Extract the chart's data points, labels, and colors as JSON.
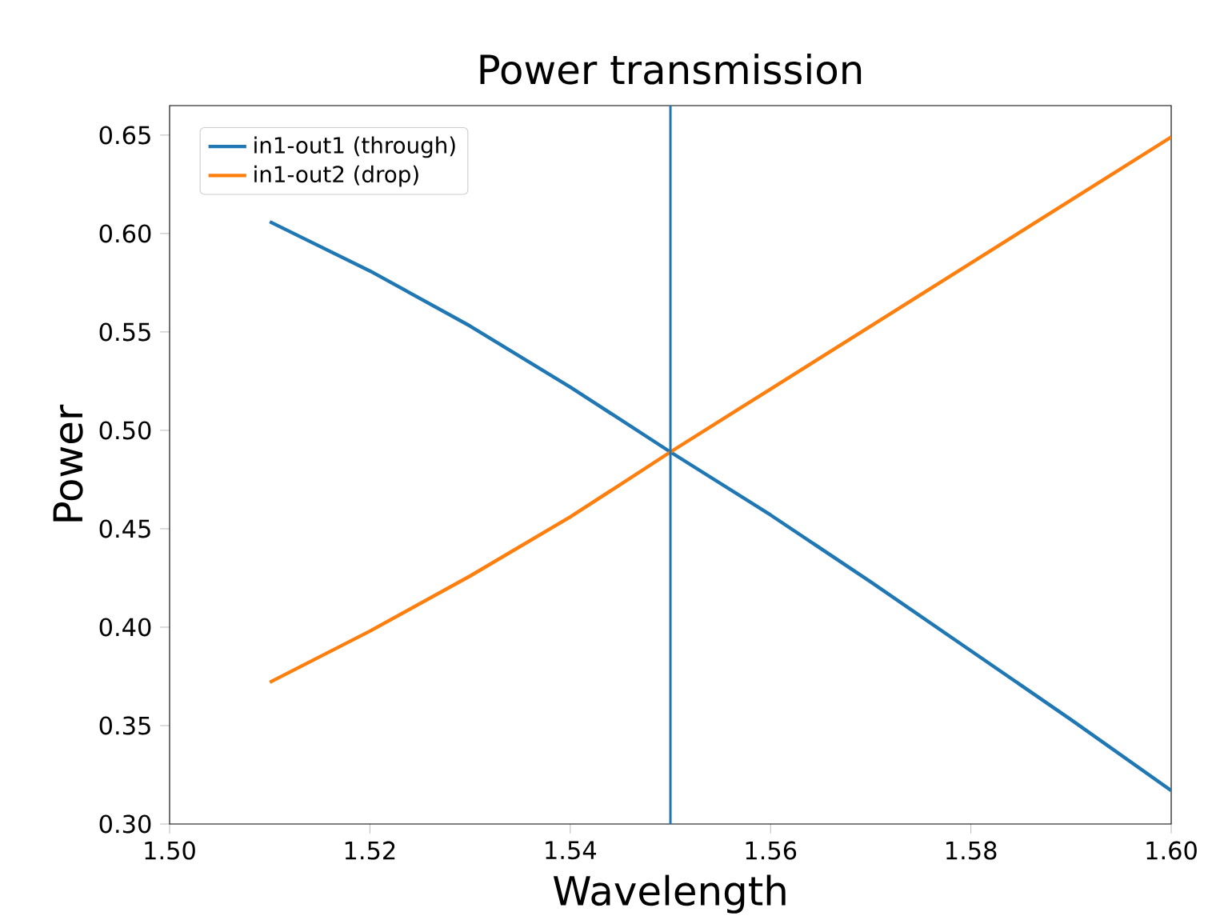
{
  "chart_data": {
    "type": "line",
    "title": "Power transmission",
    "xlabel": "Wavelength",
    "ylabel": "Power",
    "x": [
      1.51,
      1.52,
      1.53,
      1.54,
      1.55,
      1.56,
      1.57,
      1.58,
      1.59,
      1.6
    ],
    "series": [
      {
        "name": "in1-out1 (through)",
        "color": "#1f77b4",
        "values": [
          0.606,
          0.581,
          0.553,
          0.522,
          0.489,
          0.457,
          0.423,
          0.388,
          0.353,
          0.317
        ]
      },
      {
        "name": "in1-out2 (drop)",
        "color": "#ff7f0e",
        "values": [
          0.372,
          0.398,
          0.426,
          0.456,
          0.489,
          0.521,
          0.553,
          0.585,
          0.617,
          0.649
        ]
      }
    ],
    "xlim": [
      1.5,
      1.6
    ],
    "ylim": [
      0.3,
      0.665
    ],
    "xticks": [
      {
        "value": 1.5,
        "label": "1.50"
      },
      {
        "value": 1.52,
        "label": "1.52"
      },
      {
        "value": 1.54,
        "label": "1.54"
      },
      {
        "value": 1.56,
        "label": "1.56"
      },
      {
        "value": 1.58,
        "label": "1.58"
      },
      {
        "value": 1.6,
        "label": "1.60"
      }
    ],
    "yticks": [
      {
        "value": 0.3,
        "label": "0.30"
      },
      {
        "value": 0.35,
        "label": "0.35"
      },
      {
        "value": 0.4,
        "label": "0.40"
      },
      {
        "value": 0.45,
        "label": "0.45"
      },
      {
        "value": 0.5,
        "label": "0.50"
      },
      {
        "value": 0.55,
        "label": "0.55"
      },
      {
        "value": 0.6,
        "label": "0.60"
      },
      {
        "value": 0.65,
        "label": "0.65"
      }
    ],
    "ref_lines": [
      {
        "axis": "x",
        "value": 1.55,
        "color": "#1f77b4"
      }
    ],
    "legend": "top left",
    "grid": false,
    "marker": "none",
    "line_style": "solid"
  }
}
